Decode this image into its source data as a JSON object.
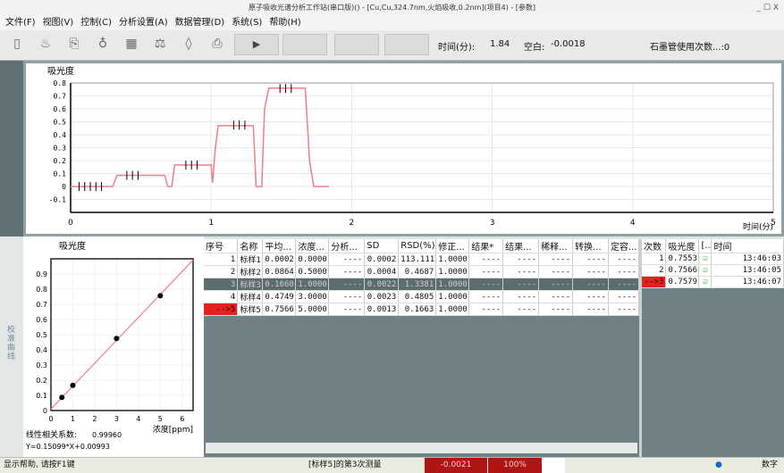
{
  "window": {
    "title": "原子吸收光谱分析工作站(串口版)() - [Cu,Cu,324.7nm,火焰吸收,0.2nm](项目4) - [参数]",
    "controls": "_ ☐ X"
  },
  "menu": [
    "文件(F)",
    "视图(V)",
    "控制(C)",
    "分析设置(A)",
    "数据管理(D)",
    "系统(S)",
    "帮助(H)"
  ],
  "toolbar": {
    "icons": [
      "new-icon",
      "flame-icon",
      "export-icon",
      "lamp-icon",
      "calc-icon",
      "balance-icon",
      "drop-icon",
      "print-icon"
    ],
    "time_label": "时间(分):",
    "time_value": "1.84",
    "blank_label": "空白:",
    "blank_value": "-0.0018",
    "tube_label": "石墨管使用次数...:0",
    "play": "▶"
  },
  "colors": {
    "trace": "#f07c8c",
    "selected_row": "#5c6d70",
    "current_marker": "#e62020",
    "status_red": "#b01515"
  },
  "chart_data": [
    {
      "type": "line",
      "ylabel": "吸光度",
      "xlabel": "时间(分)",
      "xlim": [
        0,
        5
      ],
      "ylim": [
        -0.2,
        0.8
      ],
      "xticks": [
        0,
        1,
        2,
        3,
        4,
        5
      ],
      "yticks": [
        0.8,
        0.7,
        0.6,
        0.5,
        0.4,
        0.3,
        0.2,
        0.1,
        0,
        -0.1
      ],
      "x": [
        0,
        0.3,
        0.33,
        0.67,
        0.69,
        0.72,
        0.74,
        1.0,
        1.01,
        1.03,
        1.05,
        1.3,
        1.32,
        1.36,
        1.38,
        1.41,
        1.67,
        1.7,
        1.73,
        1.84
      ],
      "y": [
        0,
        0,
        0.086,
        0.086,
        0,
        0,
        0.166,
        0.166,
        0.03,
        0.3,
        0.47,
        0.47,
        0,
        0,
        0.6,
        0.76,
        0.76,
        0.2,
        0,
        0
      ],
      "markers": [
        {
          "x": [
            0.06,
            0.1,
            0.14,
            0.18,
            0.22
          ],
          "y": 0
        },
        {
          "x": [
            0.4,
            0.44,
            0.48
          ],
          "y": 0.086
        },
        {
          "x": [
            0.82,
            0.86,
            0.9
          ],
          "y": 0.166
        },
        {
          "x": [
            1.16,
            1.2,
            1.24
          ],
          "y": 0.475
        },
        {
          "x": [
            1.49,
            1.53,
            1.57
          ],
          "y": 0.757
        }
      ]
    },
    {
      "type": "scatter",
      "ylabel": "吸光度",
      "xlabel": "浓度[ppm]",
      "xlim": [
        0,
        6.5
      ],
      "ylim": [
        0,
        1
      ],
      "xticks": [
        0,
        1,
        2,
        3,
        4,
        5,
        6
      ],
      "yticks": [
        0,
        0.1,
        0.2,
        0.3,
        0.4,
        0.5,
        0.6,
        0.7,
        0.8,
        0.9
      ],
      "points": [
        [
          0.5,
          0.0864
        ],
        [
          1,
          0.166
        ],
        [
          3,
          0.4749
        ],
        [
          5,
          0.7566
        ]
      ],
      "fit": {
        "slope": 0.15099,
        "intercept": 0.00993
      },
      "corr_label": "线性相关系数:",
      "corr_value": "0.99960",
      "equation": "Y=0.15099*X+0.00993"
    }
  ],
  "side_label": "校准曲线",
  "table": {
    "headers": [
      "序号",
      "名称",
      "平均...",
      "浓度...",
      "分析...",
      "SD",
      "RSD(%)",
      "修正...",
      "结果*",
      "结果...",
      "稀释...",
      "转换...",
      "定容..."
    ],
    "rows": [
      [
        "1",
        "标样1",
        "0.0002",
        "0.0000",
        "----",
        "0.0002",
        "113.1117",
        "1.0000",
        "----",
        "----",
        "----",
        "----",
        "----"
      ],
      [
        "2",
        "标样2",
        "0.0864",
        "0.5000",
        "----",
        "0.0004",
        "0.4687",
        "1.0000",
        "----",
        "----",
        "----",
        "----",
        "----"
      ],
      [
        "3",
        "标样3",
        "0.1660",
        "1.0000",
        "----",
        "0.0022",
        "1.3381",
        "1.0000",
        "----",
        "----",
        "----",
        "----",
        "----"
      ],
      [
        "4",
        "标样4",
        "0.4749",
        "3.0000",
        "----",
        "0.0023",
        "0.4805",
        "1.0000",
        "----",
        "----",
        "----",
        "----",
        "----"
      ],
      [
        "-->5",
        "标样5",
        "0.7566",
        "5.0000",
        "----",
        "0.0013",
        "0.1663",
        "1.0000",
        "----",
        "----",
        "----",
        "----",
        "----"
      ]
    ]
  },
  "reads": {
    "headers": [
      "次数",
      "吸光度",
      "[..",
      "时间"
    ],
    "rows": [
      [
        "1",
        "0.7553",
        "13:46:03"
      ],
      [
        "2",
        "0.7566",
        "13:46:05"
      ],
      [
        "-->3",
        "0.7579",
        "13:46:07"
      ]
    ]
  },
  "status": {
    "help": "显示帮助, 请按F1键",
    "measure": "[标样5]的第3次测量",
    "value": "-0.0021",
    "percent": "100%",
    "mode": "数字"
  }
}
